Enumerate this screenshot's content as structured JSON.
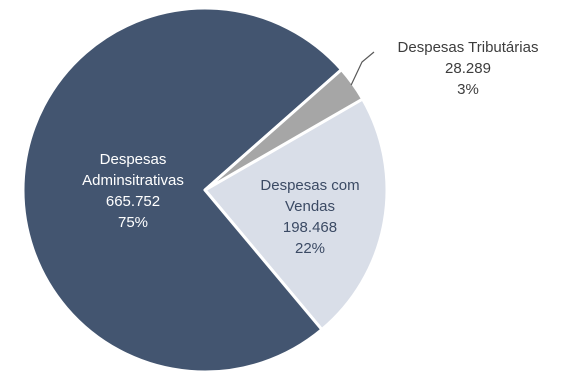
{
  "chart_data": {
    "type": "pie",
    "series": [
      {
        "categories": [
          "Despesas Adminsitrativas",
          "Despesas com Vendas",
          "Despesas Tributárias"
        ],
        "values": [
          665752,
          198468,
          28289
        ],
        "value_labels": [
          "665.752",
          "198.468",
          "28.289"
        ],
        "percent_labels": [
          "75%",
          "22%",
          "3%"
        ]
      }
    ],
    "slice_labels": [
      [
        "Despesas",
        "Adminsitrativas",
        "665.752",
        "75%"
      ],
      [
        "Despesas com",
        "Vendas",
        "198.468",
        "22%"
      ],
      [
        "Despesas Tributárias",
        "28.289",
        "3%"
      ]
    ],
    "colors": [
      "#435570",
      "#d9dee8",
      "#a6a6a6"
    ],
    "label_colors": [
      "#ffffff",
      "#3b4a64",
      "#3d3d3d"
    ],
    "leader_line_color": "#595959",
    "start_angle_deg": 60,
    "direction": "clockwise"
  }
}
